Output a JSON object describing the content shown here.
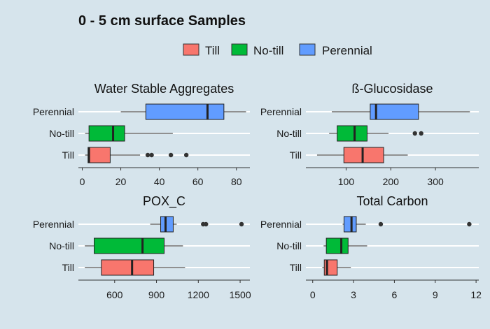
{
  "title": "0 - 5 cm surface Samples",
  "colors": {
    "background": "#d6e4ec",
    "gridline": "#ffffff",
    "axis": "#333333",
    "text": "#1a1a1a",
    "Till": "#f8766d",
    "No-till": "#00ba38",
    "Perennial": "#619cff"
  },
  "legend": {
    "placement": "top",
    "items": [
      {
        "label": "Till",
        "color": "#f8766d"
      },
      {
        "label": "No-till",
        "color": "#00ba38"
      },
      {
        "label": "Perennial",
        "color": "#619cff"
      }
    ]
  },
  "chart_data": [
    {
      "type": "box",
      "title": "Water Stable Aggregates",
      "categories": [
        "Till",
        "No-till",
        "Perennial"
      ],
      "xlim": [
        -2,
        87
      ],
      "xticks": [
        0,
        20,
        40,
        60,
        80
      ],
      "boxes": {
        "Till": {
          "whisker_low": 1.5,
          "q1": 3,
          "median": 3.5,
          "q3": 14.5,
          "whisker_high": 30,
          "outliers": [
            34,
            36,
            46,
            54
          ]
        },
        "No-till": {
          "whisker_low": 1.5,
          "q1": 3.5,
          "median": 16,
          "q3": 22,
          "whisker_high": 47,
          "outliers": []
        },
        "Perennial": {
          "whisker_low": 20,
          "q1": 33,
          "median": 65,
          "q3": 73.5,
          "whisker_high": 85,
          "outliers": []
        }
      }
    },
    {
      "type": "box",
      "title": "ß-Glucosidase",
      "categories": [
        "Till",
        "No-till",
        "Perennial"
      ],
      "xlim": [
        10,
        397
      ],
      "xticks": [
        100,
        200,
        300
      ],
      "boxes": {
        "Till": {
          "whisker_low": 35,
          "q1": 95,
          "median": 137,
          "q3": 184,
          "whisker_high": 238,
          "outliers": []
        },
        "No-till": {
          "whisker_low": 62,
          "q1": 80,
          "median": 119,
          "q3": 147,
          "whisker_high": 195,
          "outliers": [
            254,
            268
          ]
        },
        "Perennial": {
          "whisker_low": 68,
          "q1": 154,
          "median": 167,
          "q3": 262,
          "whisker_high": 377,
          "outliers": []
        }
      }
    },
    {
      "type": "box",
      "title": "POX_C",
      "categories": [
        "Till",
        "No-till",
        "Perennial"
      ],
      "xlim": [
        340,
        1570
      ],
      "xticks": [
        600,
        900,
        1200,
        1500
      ],
      "boxes": {
        "Till": {
          "whisker_low": 386,
          "q1": 505,
          "median": 725,
          "q3": 880,
          "whisker_high": 1105,
          "outliers": []
        },
        "No-till": {
          "whisker_low": 386,
          "q1": 453,
          "median": 800,
          "q3": 955,
          "whisker_high": 1090,
          "outliers": []
        },
        "Perennial": {
          "whisker_low": 855,
          "q1": 930,
          "median": 965,
          "q3": 1020,
          "whisker_high": 1045,
          "outliers": [
            1235,
            1255,
            1510
          ]
        }
      }
    },
    {
      "type": "box",
      "title": "Total Carbon",
      "categories": [
        "Till",
        "No-till",
        "Perennial"
      ],
      "xlim": [
        -0.5,
        12.2
      ],
      "xticks": [
        0,
        3,
        6,
        9,
        12
      ],
      "boxes": {
        "Till": {
          "whisker_low": 0.7,
          "q1": 0.85,
          "median": 1.05,
          "q3": 1.8,
          "whisker_high": 2.8,
          "outliers": []
        },
        "No-till": {
          "whisker_low": 0.8,
          "q1": 1.0,
          "median": 2.1,
          "q3": 2.6,
          "whisker_high": 4.0,
          "outliers": []
        },
        "Perennial": {
          "whisker_low": 2.2,
          "q1": 2.3,
          "median": 2.85,
          "q3": 3.2,
          "whisker_high": 3.9,
          "outliers": [
            5.0,
            11.5
          ]
        }
      }
    }
  ]
}
